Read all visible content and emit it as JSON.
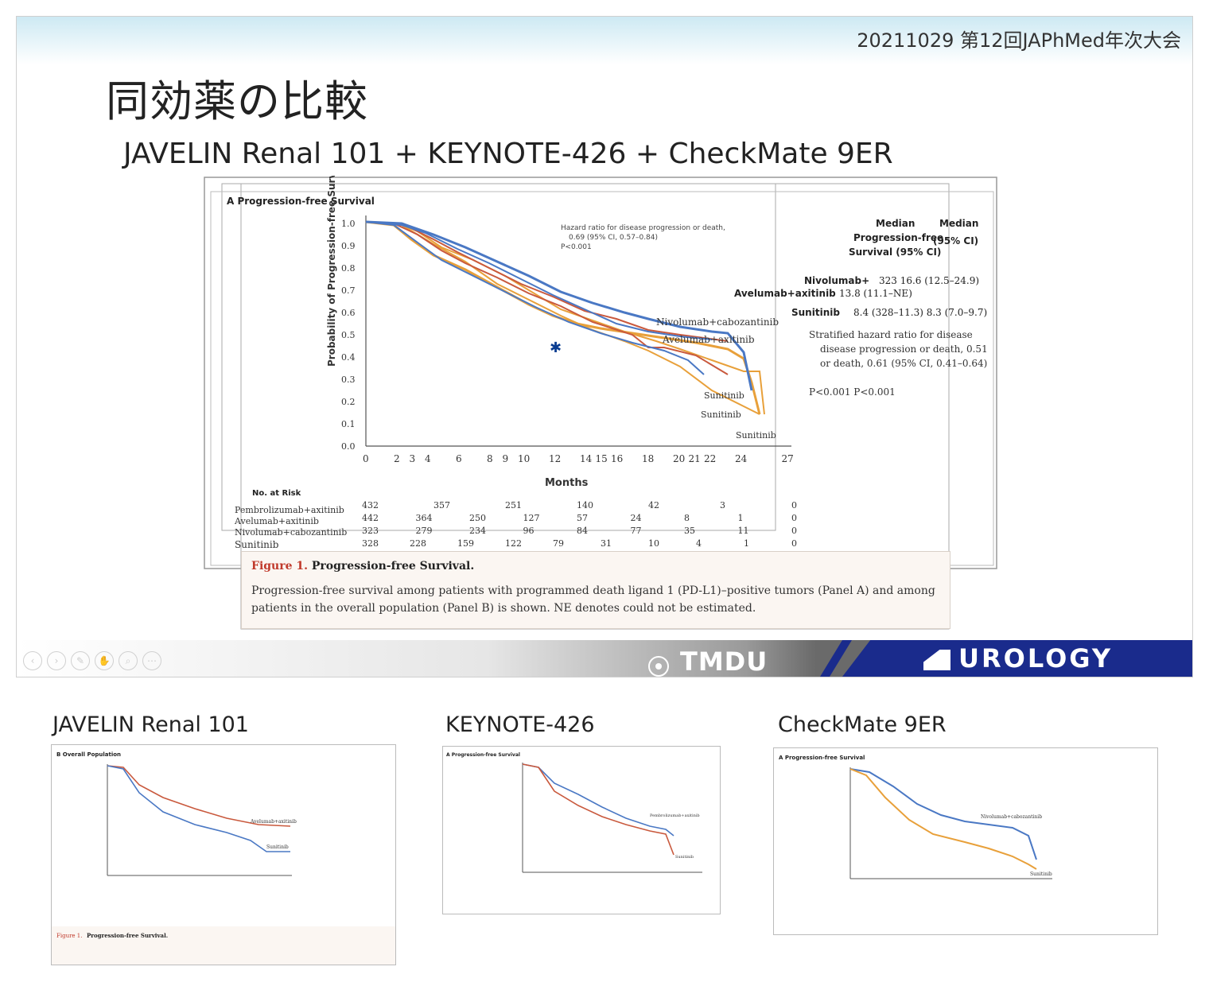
{
  "slide": {
    "conference": "20211029 第12回JAPhMed年次大会",
    "title": "同効薬の比較",
    "subtitle": "JAVELIN Renal 101 + KEYNOTE-426 + CheckMate 9ER"
  },
  "overlay": {
    "panel_label": "A  Progression-free Survival",
    "y_label": "Probability of Progression-free Survival",
    "x_label": "Months",
    "hazard_text": [
      "Hazard ratio for disease progression or death,",
      "0.69 (95% CI, 0.57–0.84)",
      "P<0.001"
    ],
    "legend_header": [
      "Median",
      "Progression-free",
      "Survival (95% CI)"
    ],
    "legend_header2": [
      "Median",
      "(95% CI)"
    ],
    "legend_rows": [
      "Nivolumab+",
      "Avelumab+axitinib",
      "Sunitinib"
    ],
    "legend_values": [
      "323   16.6 (12.5–24.9)",
      "13.8 (11.1–NE)",
      "8.4 (328–11.3)  8.3 (7.0–9.7)"
    ],
    "stratified": [
      "Stratified hazard ratio for disease",
      "disease progression or death, 0.51",
      "or death, 0.61 (95% CI, 0.41–0.64)",
      "P<0.001   P<0.001"
    ],
    "series_labels": [
      "Nivolumab+cabozantinib",
      "Avelumab+axitinib",
      "Sunitinib",
      "Sunitinib",
      "Sunitinib"
    ],
    "y_ticks": [
      "0.0",
      "0.1",
      "0.2",
      "0.3",
      "0.4",
      "0.5",
      "0.6",
      "0.7",
      "0.8",
      "0.9",
      "1.0"
    ],
    "x_ticks": [
      "0",
      "2",
      "3",
      "4",
      "6",
      "8",
      "9",
      "10",
      "12",
      "14",
      "15",
      "16",
      "18",
      "20",
      "21",
      "22",
      "24",
      "27"
    ],
    "risk_header": "No. at Risk",
    "risk_rows": [
      {
        "name": "Pembrolizumab+axitinib",
        "values": [
          "432",
          "357",
          "251",
          "140",
          "42",
          "3",
          "0"
        ]
      },
      {
        "name": "Avelumab+axitinib",
        "values": [
          "442",
          "364",
          "250",
          "127",
          "57",
          "24",
          "8",
          "1",
          "0"
        ]
      },
      {
        "name": "Nivolumab+cabozantinib",
        "values": [
          "323",
          "279",
          "234",
          "96",
          "84",
          "77",
          "35",
          "11",
          "0"
        ]
      },
      {
        "name": "Sunitinib",
        "values": [
          "328",
          "228",
          "159",
          "122",
          "79",
          "31",
          "10",
          "4",
          "1",
          "0"
        ]
      }
    ]
  },
  "caption": {
    "label": "Figure 1.",
    "title": "Progression-free Survival.",
    "body": "Progression-free survival among patients with programmed death ligand 1 (PD-L1)–positive tumors (Panel A) and among patients in the overall population (Panel B) is shown. NE denotes could not be estimated."
  },
  "footer": {
    "tmdu": "TMDU",
    "urology": "UROLOGY"
  },
  "thumbnails": [
    {
      "label": "JAVELIN Renal 101",
      "panel": "B  Overall Population",
      "lines": [
        "Avelumab+axitinib",
        "Sunitinib"
      ],
      "caption_label": "Figure 1.",
      "caption_title": "Progression-free Survival."
    },
    {
      "label": "KEYNOTE-426",
      "panel": "A  Progression-free Survival",
      "lines": [
        "Pembrolizumab+axitinib",
        "Sunitinib"
      ]
    },
    {
      "label": "CheckMate 9ER",
      "panel": "A  Progression-free Survival",
      "lines": [
        "Nivolumab+cabozantinib",
        "Sunitinib"
      ]
    }
  ],
  "colors": {
    "blue_curve": "#4a78c4",
    "orange_curve": "#e8a03a",
    "red_curve": "#c9593d",
    "footer_blue": "#1a2b8c"
  }
}
